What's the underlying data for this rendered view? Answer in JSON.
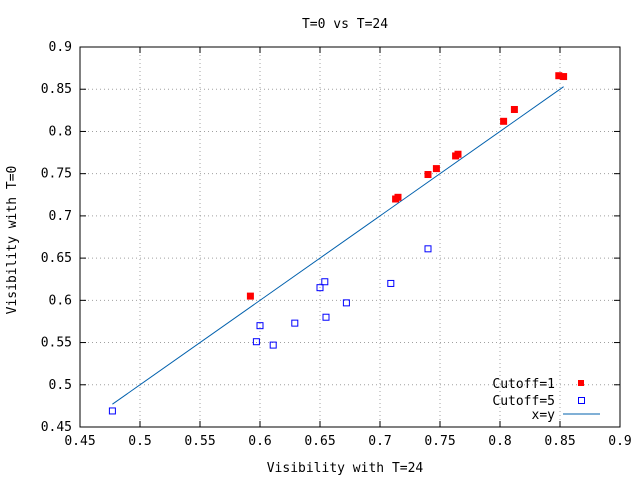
{
  "chart_data": {
    "type": "scatter",
    "title": "T=0 vs T=24",
    "xlabel": "Visibility with T=24",
    "ylabel": "Visibility with T=0",
    "xlim": [
      0.45,
      0.9
    ],
    "ylim": [
      0.45,
      0.9
    ],
    "xticks": [
      "0.45",
      "0.5",
      "0.55",
      "0.6",
      "0.65",
      "0.7",
      "0.75",
      "0.8",
      "0.85",
      "0.9"
    ],
    "yticks": [
      "0.45",
      "0.5",
      "0.55",
      "0.6",
      "0.65",
      "0.7",
      "0.75",
      "0.8",
      "0.85",
      "0.9"
    ],
    "grid": true,
    "legend_position": "bottom-right",
    "series": [
      {
        "name": "Cutoff=1",
        "marker": "filled-square",
        "color": "#ff0000",
        "points": [
          [
            0.592,
            0.605
          ],
          [
            0.713,
            0.72
          ],
          [
            0.715,
            0.722
          ],
          [
            0.74,
            0.749
          ],
          [
            0.747,
            0.756
          ],
          [
            0.763,
            0.771
          ],
          [
            0.765,
            0.773
          ],
          [
            0.803,
            0.812
          ],
          [
            0.812,
            0.826
          ],
          [
            0.849,
            0.866
          ],
          [
            0.853,
            0.865
          ]
        ]
      },
      {
        "name": "Cutoff=5",
        "marker": "open-square",
        "color": "#0000ff",
        "points": [
          [
            0.477,
            0.469
          ],
          [
            0.597,
            0.551
          ],
          [
            0.6,
            0.57
          ],
          [
            0.611,
            0.547
          ],
          [
            0.629,
            0.573
          ],
          [
            0.65,
            0.615
          ],
          [
            0.654,
            0.622
          ],
          [
            0.655,
            0.58
          ],
          [
            0.672,
            0.597
          ],
          [
            0.709,
            0.62
          ],
          [
            0.74,
            0.661
          ]
        ]
      },
      {
        "name": "x=y",
        "type": "line",
        "color": "#0060ad",
        "points": [
          [
            0.477,
            0.477
          ],
          [
            0.853,
            0.853
          ]
        ]
      }
    ]
  }
}
